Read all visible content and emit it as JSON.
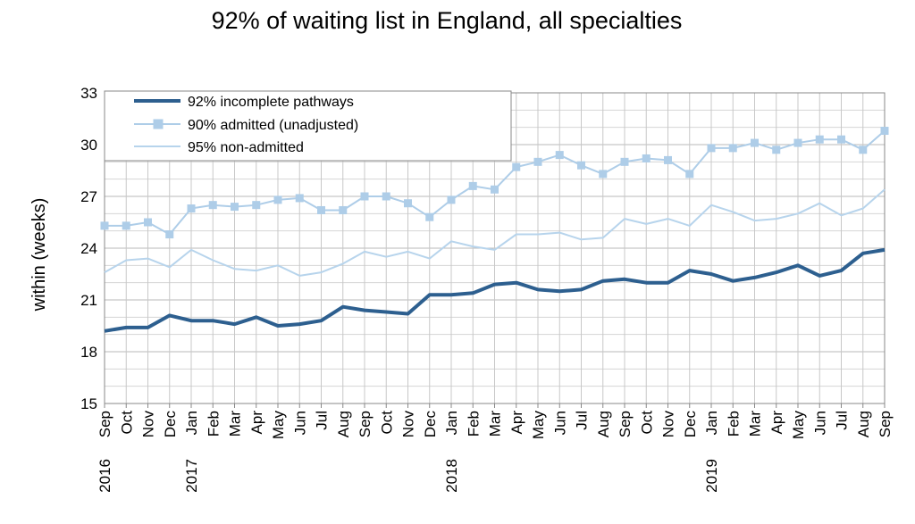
{
  "chart_data": {
    "type": "line",
    "title": "92% of waiting list in England, all specialties",
    "ylabel": "within  (weeks)",
    "xlabel": "",
    "ylim": [
      15,
      33
    ],
    "yticks": [
      15,
      18,
      21,
      24,
      27,
      30,
      33
    ],
    "grid": true,
    "legend_position": "top-left",
    "categories": [
      "Sep",
      "Oct",
      "Nov",
      "Dec",
      "Jan",
      "Feb",
      "Mar",
      "Apr",
      "May",
      "Jun",
      "Jul",
      "Aug",
      "Sep",
      "Oct",
      "Nov",
      "Dec",
      "Jan",
      "Feb",
      "Mar",
      "Apr",
      "May",
      "Jun",
      "Jul",
      "Aug",
      "Sep",
      "Oct",
      "Nov",
      "Dec",
      "Jan",
      "Feb",
      "Mar",
      "Apr",
      "May",
      "Jun",
      "Jul",
      "Aug",
      "Sep"
    ],
    "year_labels": [
      {
        "index": 0,
        "label": "2016"
      },
      {
        "index": 4,
        "label": "2017"
      },
      {
        "index": 16,
        "label": "2018"
      },
      {
        "index": 28,
        "label": "2019"
      }
    ],
    "series": [
      {
        "name": "92% incomplete pathways",
        "color": "#2d5f8f",
        "style": "thick-line",
        "values": [
          19.2,
          19.4,
          19.4,
          20.1,
          19.8,
          19.8,
          19.6,
          20.0,
          19.5,
          19.6,
          19.8,
          20.6,
          20.4,
          20.3,
          20.2,
          21.3,
          21.3,
          21.4,
          21.9,
          22.0,
          21.6,
          21.5,
          21.6,
          22.1,
          22.2,
          22.0,
          22.0,
          22.7,
          22.5,
          22.1,
          22.3,
          22.6,
          23.0,
          22.4,
          22.7,
          23.7,
          23.9
        ]
      },
      {
        "name": "90% admitted (unadjusted)",
        "color": "#aecde8",
        "style": "line-square-markers",
        "values": [
          25.3,
          25.3,
          25.5,
          24.8,
          26.3,
          26.5,
          26.4,
          26.5,
          26.8,
          26.9,
          26.2,
          26.2,
          27.0,
          27.0,
          26.6,
          25.8,
          26.8,
          27.6,
          27.4,
          28.7,
          29.0,
          29.4,
          28.8,
          28.3,
          29.0,
          29.2,
          29.1,
          28.3,
          29.8,
          29.8,
          30.1,
          29.7,
          30.1,
          30.3,
          30.3,
          29.7,
          30.8
        ]
      },
      {
        "name": "95% non-admitted",
        "color": "#b7d4ec",
        "style": "thin-line",
        "values": [
          22.6,
          23.3,
          23.4,
          22.9,
          23.9,
          23.3,
          22.8,
          22.7,
          23.0,
          22.4,
          22.6,
          23.1,
          23.8,
          23.5,
          23.8,
          23.4,
          24.4,
          24.1,
          23.9,
          24.8,
          24.8,
          24.9,
          24.5,
          24.6,
          25.7,
          25.4,
          25.7,
          25.3,
          26.5,
          26.1,
          25.6,
          25.7,
          26.0,
          26.6,
          25.9,
          26.3,
          27.4
        ]
      }
    ]
  }
}
